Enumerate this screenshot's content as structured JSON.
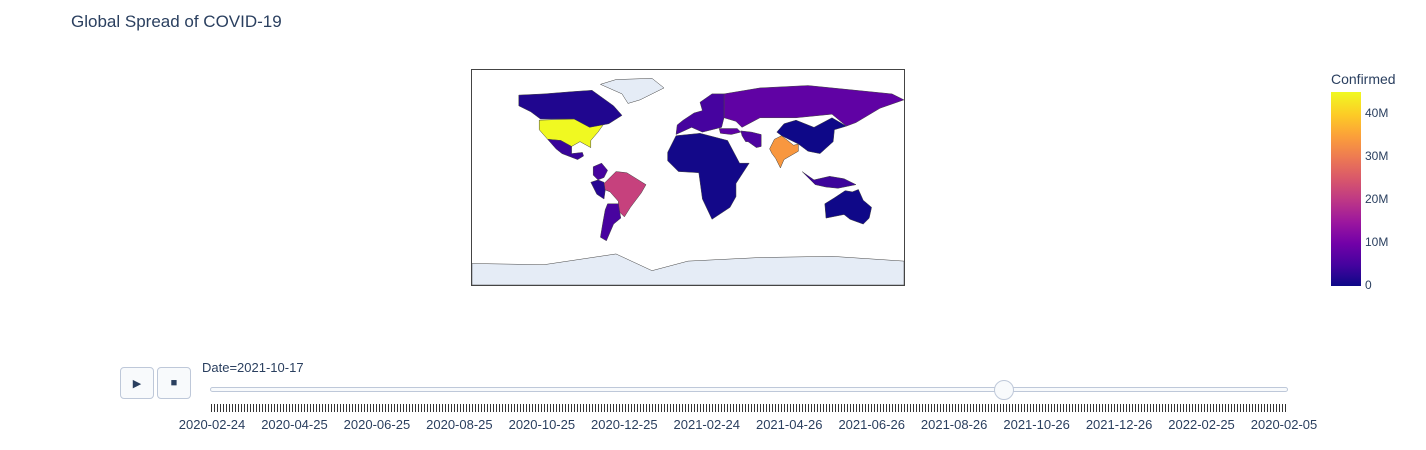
{
  "title": "Global Spread of COVID-19",
  "colorbar": {
    "title": "Confirmed",
    "ticks": [
      {
        "label": "0",
        "value": 0
      },
      {
        "label": "10M",
        "value": 10000000
      },
      {
        "label": "20M",
        "value": 20000000
      },
      {
        "label": "30M",
        "value": 30000000
      },
      {
        "label": "40M",
        "value": 40000000
      }
    ],
    "range": [
      0,
      45000000
    ],
    "colorscale": [
      "#0d0887",
      "#46039f",
      "#7201a8",
      "#9c179e",
      "#bd3786",
      "#d8576b",
      "#ed7953",
      "#fb9f3a",
      "#fdca26",
      "#f0f921"
    ]
  },
  "map": {
    "projection": "equirectangular",
    "ocean_color": "#ffffff",
    "no_data_color": "#e5ecf6",
    "border_color": "#444444"
  },
  "animation": {
    "play_icon": "play-icon",
    "stop_icon": "stop-icon",
    "current_label": "Date=2021-10-17",
    "current_position": 0.737,
    "tick_labels": [
      "2020-02-24",
      "2020-04-25",
      "2020-06-25",
      "2020-08-25",
      "2020-10-25",
      "2020-12-25",
      "2021-02-24",
      "2021-04-26",
      "2021-06-26",
      "2021-08-26",
      "2021-10-26",
      "2021-12-26",
      "2022-02-25",
      "2020-02-05"
    ]
  },
  "chart_data": {
    "type": "choropleth",
    "frame_date": "2021-10-17",
    "color_variable": "Confirmed",
    "zrange": [
      0,
      45000000
    ],
    "regions": [
      {
        "name": "United States",
        "value": 45000000
      },
      {
        "name": "India",
        "value": 34000000
      },
      {
        "name": "Brazil",
        "value": 21600000
      },
      {
        "name": "Russia",
        "value": 8000000
      },
      {
        "name": "Mexico",
        "value": 3750000
      },
      {
        "name": "Argentina",
        "value": 5270000
      },
      {
        "name": "Colombia",
        "value": 4980000
      },
      {
        "name": "Peru",
        "value": 2190000
      },
      {
        "name": "Iran",
        "value": 5780000
      },
      {
        "name": "Turkey",
        "value": 7600000
      },
      {
        "name": "Indonesia",
        "value": 4230000
      },
      {
        "name": "Europe",
        "value": 5000000
      },
      {
        "name": "Canada",
        "value": 1680000
      },
      {
        "name": "Australia",
        "value": 140000
      },
      {
        "name": "China",
        "value": 110000
      },
      {
        "name": "Africa",
        "value": 500000
      }
    ]
  }
}
